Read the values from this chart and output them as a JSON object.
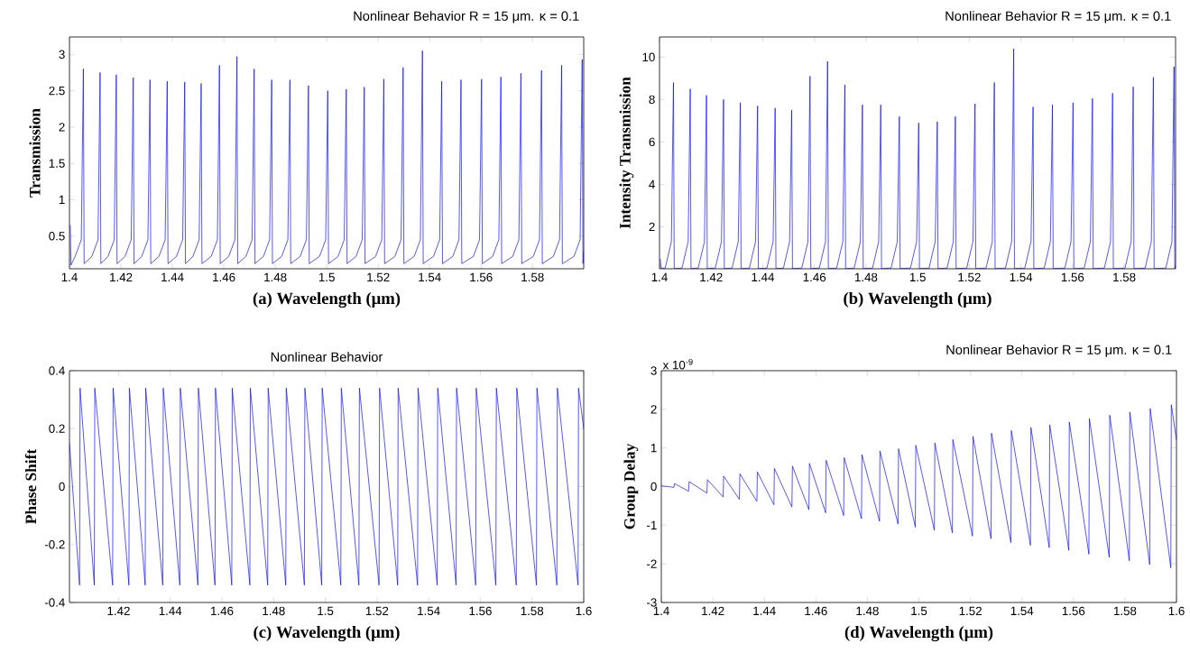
{
  "chart_data": [
    {
      "type": "line",
      "title": "Nonlinear Behavior R = 15 μm. κ = 0.1",
      "xlabel": "(a) Wavelength (μm)",
      "ylabel": "Transmission",
      "color": "#0000ff",
      "xlim": [
        1.4,
        1.5999
      ],
      "ylim": [
        0.05,
        3.24
      ],
      "xticks": [
        1.4,
        1.42,
        1.44,
        1.46,
        1.48,
        1.5,
        1.52,
        1.54,
        1.56,
        1.58
      ],
      "yticks": [
        0.5,
        1,
        1.5,
        2,
        2.5,
        3
      ],
      "x": [
        1.4003,
        1.4006,
        1.4022,
        1.4046,
        1.4054,
        1.4057,
        1.4087,
        1.4111,
        1.4119,
        1.4122,
        1.415,
        1.4174,
        1.4182,
        1.4185,
        1.4216,
        1.424,
        1.4248,
        1.4251,
        1.4281,
        1.4305,
        1.4313,
        1.4316,
        1.4348,
        1.4372,
        1.438,
        1.4383,
        1.4416,
        1.444,
        1.4448,
        1.4451,
        1.448,
        1.4504,
        1.4512,
        1.4515,
        1.4551,
        1.4575,
        1.4583,
        1.4586,
        1.4619,
        1.4643,
        1.4651,
        1.4654,
        1.4686,
        1.471,
        1.4718,
        1.4721,
        1.4754,
        1.4778,
        1.4786,
        1.4789,
        1.4825,
        1.4849,
        1.4857,
        1.486,
        1.4897,
        1.4921,
        1.4929,
        1.4932,
        1.4972,
        1.4996,
        1.5004,
        1.5007,
        1.5044,
        1.5068,
        1.5076,
        1.5079,
        1.5114,
        1.5138,
        1.5146,
        1.5149,
        1.519,
        1.5214,
        1.5222,
        1.5225,
        1.5265,
        1.5289,
        1.5297,
        1.53,
        1.534,
        1.5364,
        1.5372,
        1.5375,
        1.5415,
        1.5439,
        1.5447,
        1.545,
        1.549,
        1.5514,
        1.5522,
        1.5525,
        1.557,
        1.5594,
        1.5602,
        1.5605,
        1.5645,
        1.5669,
        1.5677,
        1.568,
        1.5723,
        1.5747,
        1.5755,
        1.5758,
        1.5803,
        1.5827,
        1.5835,
        1.5838,
        1.5881,
        1.5905,
        1.5913,
        1.5916,
        1.5961,
        1.5985,
        1.5993,
        1.5996,
        1.5999
      ],
      "values": [
        0.65,
        0.1,
        0.22,
        0.45,
        2.8,
        0.12,
        0.22,
        0.45,
        2.75,
        0.12,
        0.22,
        0.45,
        2.72,
        0.12,
        0.22,
        0.45,
        2.68,
        0.12,
        0.22,
        0.45,
        2.65,
        0.12,
        0.22,
        0.45,
        2.63,
        0.12,
        0.22,
        0.45,
        2.62,
        0.12,
        0.22,
        0.45,
        2.6,
        0.12,
        0.22,
        0.45,
        2.85,
        0.12,
        0.22,
        0.45,
        2.97,
        0.12,
        0.22,
        0.45,
        2.8,
        0.12,
        0.22,
        0.45,
        2.65,
        0.12,
        0.22,
        0.45,
        2.65,
        0.12,
        0.22,
        0.45,
        2.57,
        0.12,
        0.22,
        0.45,
        2.5,
        0.12,
        0.22,
        0.45,
        2.52,
        0.12,
        0.22,
        0.45,
        2.55,
        0.12,
        0.22,
        0.45,
        2.66,
        0.12,
        0.22,
        0.45,
        2.82,
        0.12,
        0.22,
        0.45,
        3.05,
        0.12,
        0.22,
        0.45,
        2.63,
        0.12,
        0.22,
        0.45,
        2.65,
        0.12,
        0.22,
        0.45,
        2.66,
        0.12,
        0.22,
        0.45,
        2.69,
        0.12,
        0.22,
        0.45,
        2.74,
        0.12,
        0.22,
        0.45,
        2.78,
        0.12,
        0.22,
        0.45,
        2.85,
        0.12,
        0.22,
        0.45,
        2.93,
        0.12,
        0.3
      ]
    },
    {
      "type": "line",
      "title": "Nonlinear Behavior R = 15 μm. κ = 0.1",
      "xlabel": "(b) Wavelength (μm)",
      "ylabel": "Intensity Transmission",
      "color": "#0000ff",
      "xlim": [
        1.4,
        1.5999
      ],
      "ylim": [
        0.02,
        10.95
      ],
      "xticks": [
        1.4,
        1.42,
        1.44,
        1.46,
        1.48,
        1.5,
        1.52,
        1.54,
        1.56,
        1.58
      ],
      "yticks": [
        2,
        4,
        6,
        8,
        10
      ],
      "x": [
        1.4003,
        1.4006,
        1.4022,
        1.4046,
        1.4054,
        1.4057,
        1.4087,
        1.4111,
        1.4119,
        1.4122,
        1.415,
        1.4174,
        1.4182,
        1.4185,
        1.4216,
        1.424,
        1.4248,
        1.4251,
        1.4281,
        1.4305,
        1.4313,
        1.4316,
        1.4348,
        1.4372,
        1.438,
        1.4383,
        1.4416,
        1.444,
        1.4448,
        1.4451,
        1.448,
        1.4504,
        1.4512,
        1.4515,
        1.4551,
        1.4575,
        1.4583,
        1.4586,
        1.4619,
        1.4643,
        1.4651,
        1.4654,
        1.4686,
        1.471,
        1.4718,
        1.4721,
        1.4754,
        1.4778,
        1.4786,
        1.4789,
        1.4825,
        1.4849,
        1.4857,
        1.486,
        1.4897,
        1.4921,
        1.4929,
        1.4932,
        1.4972,
        1.4996,
        1.5004,
        1.5007,
        1.5044,
        1.5068,
        1.5076,
        1.5079,
        1.5114,
        1.5138,
        1.5146,
        1.5149,
        1.519,
        1.5214,
        1.5222,
        1.5225,
        1.5265,
        1.5289,
        1.5297,
        1.53,
        1.534,
        1.5364,
        1.5372,
        1.5375,
        1.5415,
        1.5439,
        1.5447,
        1.545,
        1.549,
        1.5514,
        1.5522,
        1.5525,
        1.557,
        1.5594,
        1.5602,
        1.5605,
        1.5645,
        1.5669,
        1.5677,
        1.568,
        1.5723,
        1.5747,
        1.5755,
        1.5758,
        1.5803,
        1.5827,
        1.5835,
        1.5838,
        1.5881,
        1.5905,
        1.5913,
        1.5916,
        1.5961,
        1.5985,
        1.5993,
        1.5996,
        1.5999
      ],
      "values": [
        0.5,
        0.05,
        0.05,
        1.3,
        8.8,
        0.03,
        0.05,
        1.3,
        8.5,
        0.03,
        0.05,
        1.3,
        8.2,
        0.03,
        0.05,
        1.3,
        8.0,
        0.03,
        0.05,
        1.3,
        7.85,
        0.03,
        0.05,
        1.3,
        7.7,
        0.03,
        0.05,
        1.3,
        7.6,
        0.03,
        0.05,
        1.3,
        7.5,
        0.03,
        0.05,
        1.3,
        9.1,
        0.03,
        0.05,
        1.3,
        9.8,
        0.03,
        0.05,
        1.3,
        8.7,
        0.03,
        0.05,
        1.3,
        7.75,
        0.03,
        0.05,
        1.3,
        7.75,
        0.03,
        0.05,
        1.3,
        7.2,
        0.03,
        0.05,
        1.3,
        6.9,
        0.03,
        0.05,
        1.3,
        6.95,
        0.03,
        0.05,
        1.3,
        7.2,
        0.03,
        0.05,
        1.3,
        7.8,
        0.03,
        0.05,
        1.3,
        8.8,
        0.03,
        0.05,
        1.3,
        10.4,
        0.03,
        0.05,
        1.3,
        7.65,
        0.03,
        0.05,
        1.3,
        7.75,
        0.03,
        0.05,
        1.3,
        7.85,
        0.03,
        0.05,
        1.3,
        8.05,
        0.03,
        0.05,
        1.3,
        8.3,
        0.03,
        0.05,
        1.3,
        8.6,
        0.03,
        0.05,
        1.3,
        9.05,
        0.03,
        0.05,
        1.3,
        9.55,
        0.03,
        0.2
      ]
    },
    {
      "type": "line",
      "title": "Nonlinear Behavior",
      "xlabel": "(c) Wavelength (μm)",
      "ylabel": "Phase Shift",
      "color": "#0000ff",
      "xlim": [
        1.401,
        1.6
      ],
      "ylim": [
        -0.4,
        0.4
      ],
      "xticks": [
        1.42,
        1.44,
        1.46,
        1.48,
        1.5,
        1.52,
        1.54,
        1.56,
        1.58,
        1.6
      ],
      "yticks": [
        -0.4,
        -0.2,
        0,
        0.2,
        0.4
      ],
      "x": [
        1.401,
        1.4049,
        1.4051,
        1.4106,
        1.4108,
        1.4177,
        1.4179,
        1.424,
        1.4242,
        1.4303,
        1.4305,
        1.4371,
        1.4373,
        1.4437,
        1.4439,
        1.4507,
        1.4509,
        1.4573,
        1.4575,
        1.4638,
        1.464,
        1.4708,
        1.471,
        1.4777,
        1.4779,
        1.4847,
        1.4849,
        1.4919,
        1.4921,
        1.4986,
        1.4988,
        1.506,
        1.5062,
        1.513,
        1.5132,
        1.5208,
        1.521,
        1.528,
        1.5282,
        1.5357,
        1.5359,
        1.5433,
        1.5435,
        1.5506,
        1.5508,
        1.5582,
        1.5584,
        1.566,
        1.5662,
        1.5739,
        1.5741,
        1.5817,
        1.5819,
        1.5896,
        1.5898,
        1.5978,
        1.598,
        1.6
      ],
      "values": [
        0.15,
        -0.34,
        0.34,
        -0.34,
        0.34,
        -0.34,
        0.34,
        -0.34,
        0.34,
        -0.34,
        0.34,
        -0.34,
        0.34,
        -0.34,
        0.34,
        -0.34,
        0.34,
        -0.34,
        0.34,
        -0.34,
        0.34,
        -0.34,
        0.34,
        -0.34,
        0.34,
        -0.34,
        0.34,
        -0.34,
        0.34,
        -0.34,
        0.34,
        -0.34,
        0.34,
        -0.34,
        0.34,
        -0.34,
        0.34,
        -0.34,
        0.34,
        -0.34,
        0.34,
        -0.34,
        0.34,
        -0.34,
        0.34,
        -0.34,
        0.34,
        -0.34,
        0.34,
        -0.34,
        0.34,
        -0.34,
        0.34,
        -0.34,
        0.34,
        -0.34,
        0.34,
        0.2
      ]
    },
    {
      "type": "line",
      "title": "Nonlinear Behavior R = 15 μm. κ = 0.1",
      "xlabel": "(d) Wavelength (μm)",
      "ylabel": "Group Delay",
      "color": "#0000ff",
      "annotations": [
        "x 10$^{-9}$"
      ],
      "xlim": [
        1.4,
        1.6
      ],
      "ylim": [
        -3,
        3
      ],
      "xticks": [
        1.4,
        1.42,
        1.44,
        1.46,
        1.48,
        1.5,
        1.52,
        1.54,
        1.56,
        1.58,
        1.6
      ],
      "yticks": [
        -3,
        -2,
        -1,
        0,
        1,
        2,
        3
      ],
      "x": [
        1.4,
        1.4049,
        1.4051,
        1.4106,
        1.4108,
        1.4177,
        1.4179,
        1.424,
        1.4242,
        1.4303,
        1.4305,
        1.4371,
        1.4373,
        1.4437,
        1.4439,
        1.4507,
        1.4509,
        1.4573,
        1.4575,
        1.4638,
        1.464,
        1.4708,
        1.471,
        1.4777,
        1.4779,
        1.4847,
        1.4849,
        1.4919,
        1.4921,
        1.4986,
        1.4988,
        1.506,
        1.5062,
        1.513,
        1.5132,
        1.5208,
        1.521,
        1.528,
        1.5282,
        1.5357,
        1.5359,
        1.5433,
        1.5435,
        1.5506,
        1.5508,
        1.5582,
        1.5584,
        1.566,
        1.5662,
        1.5739,
        1.5741,
        1.5817,
        1.5819,
        1.5896,
        1.5898,
        1.5978,
        1.598,
        1.6
      ],
      "values": [
        0.02,
        -0.02,
        0.08,
        -0.12,
        0.13,
        -0.17,
        0.18,
        -0.27,
        0.27,
        -0.33,
        0.33,
        -0.38,
        0.38,
        -0.47,
        0.47,
        -0.53,
        0.53,
        -0.6,
        0.6,
        -0.68,
        0.68,
        -0.75,
        0.75,
        -0.83,
        0.83,
        -0.9,
        0.92,
        -0.97,
        0.98,
        -1.05,
        1.07,
        -1.13,
        1.13,
        -1.2,
        1.22,
        -1.28,
        1.3,
        -1.35,
        1.38,
        -1.45,
        1.45,
        -1.52,
        1.53,
        -1.58,
        1.6,
        -1.65,
        1.67,
        -1.75,
        1.76,
        -1.83,
        1.85,
        -1.92,
        1.93,
        -2.02,
        2.02,
        -2.1,
        2.12,
        1.2
      ]
    }
  ]
}
